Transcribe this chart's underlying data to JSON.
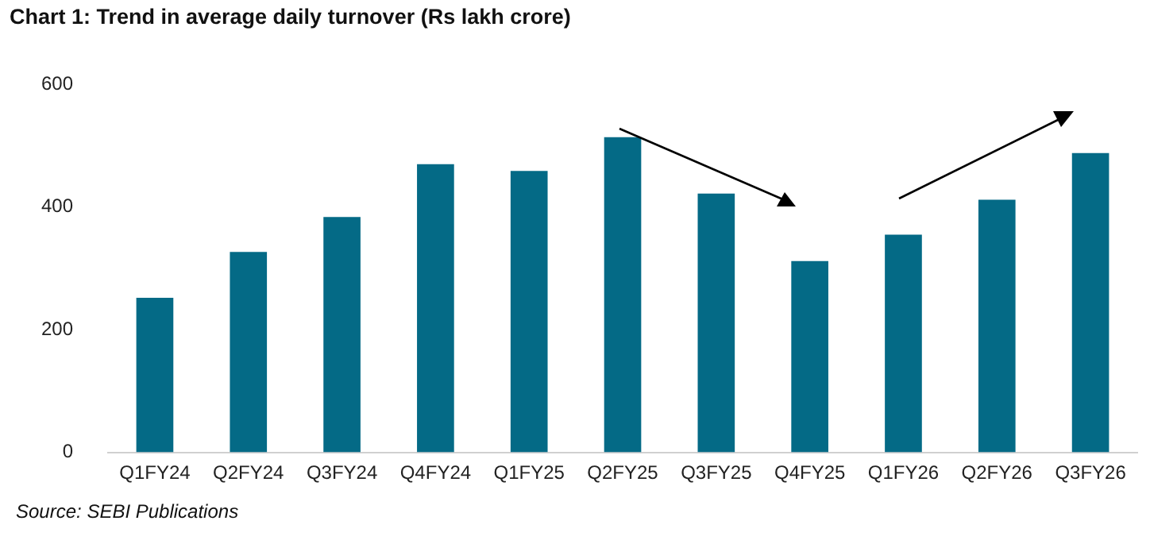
{
  "chart_data": {
    "type": "bar",
    "title": "Chart 1: Trend in average daily turnover (Rs lakh crore)",
    "categories": [
      "Q1FY24",
      "Q2FY24",
      "Q3FY24",
      "Q4FY24",
      "Q1FY25",
      "Q2FY25",
      "Q3FY25",
      "Q4FY25",
      "Q1FY26",
      "Q2FY26",
      "Q3FY26"
    ],
    "values": [
      252,
      327,
      384,
      470,
      459,
      514,
      422,
      312,
      355,
      412,
      488
    ],
    "color": "#046a86",
    "ylim": [
      0,
      600
    ],
    "yticks": [
      0,
      200,
      400,
      600
    ],
    "grid": false,
    "legend": false,
    "annotations": [
      "Source: SEBI Publications"
    ]
  }
}
